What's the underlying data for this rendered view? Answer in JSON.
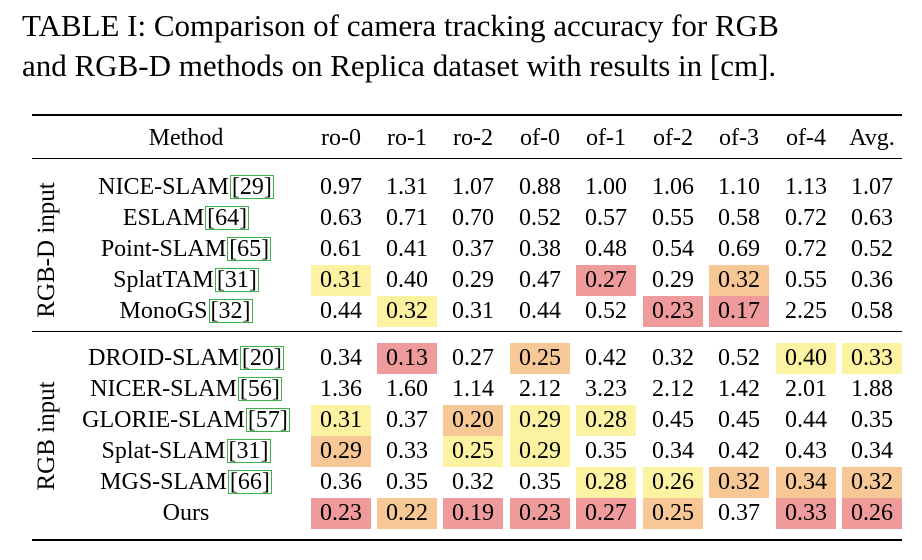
{
  "caption": {
    "line1": "TABLE I: Comparison of camera tracking accuracy for RGB",
    "line2": "and RGB-D methods on Replica dataset with results in [cm]."
  },
  "colors": {
    "red": "#ef9b9b",
    "orange": "#f7c795",
    "yellow": "#fbf3a1",
    "cite_border": "#3cb34a"
  },
  "table": {
    "method_header": "Method",
    "columns": [
      "ro-0",
      "ro-1",
      "ro-2",
      "of-0",
      "of-1",
      "of-2",
      "of-3",
      "of-4",
      "Avg."
    ],
    "groups": [
      {
        "label": "RGB-D input",
        "rows": [
          {
            "name": "NICE-SLAM",
            "cite": "[29]",
            "values": [
              "0.97",
              "1.31",
              "1.07",
              "0.88",
              "1.00",
              "1.06",
              "1.10",
              "1.13",
              "1.07"
            ],
            "hl": [
              "",
              "",
              "",
              "",
              "",
              "",
              "",
              "",
              ""
            ]
          },
          {
            "name": "ESLAM",
            "cite": "[64]",
            "values": [
              "0.63",
              "0.71",
              "0.70",
              "0.52",
              "0.57",
              "0.55",
              "0.58",
              "0.72",
              "0.63"
            ],
            "hl": [
              "",
              "",
              "",
              "",
              "",
              "",
              "",
              "",
              ""
            ]
          },
          {
            "name": "Point-SLAM",
            "cite": "[65]",
            "values": [
              "0.61",
              "0.41",
              "0.37",
              "0.38",
              "0.48",
              "0.54",
              "0.69",
              "0.72",
              "0.52"
            ],
            "hl": [
              "",
              "",
              "",
              "",
              "",
              "",
              "",
              "",
              ""
            ]
          },
          {
            "name": "SplatTAM",
            "cite": "[31]",
            "values": [
              "0.31",
              "0.40",
              "0.29",
              "0.47",
              "0.27",
              "0.29",
              "0.32",
              "0.55",
              "0.36"
            ],
            "hl": [
              "yellow",
              "",
              "",
              "",
              "red",
              "",
              "orange",
              "",
              ""
            ]
          },
          {
            "name": "MonoGS",
            "cite": "[32]",
            "values": [
              "0.44",
              "0.32",
              "0.31",
              "0.44",
              "0.52",
              "0.23",
              "0.17",
              "2.25",
              "0.58"
            ],
            "hl": [
              "",
              "yellow",
              "",
              "",
              "",
              "red",
              "red",
              "",
              ""
            ]
          }
        ]
      },
      {
        "label": "RGB input",
        "rows": [
          {
            "name": "DROID-SLAM",
            "cite": "[20]",
            "values": [
              "0.34",
              "0.13",
              "0.27",
              "0.25",
              "0.42",
              "0.32",
              "0.52",
              "0.40",
              "0.33"
            ],
            "hl": [
              "",
              "red",
              "",
              "orange",
              "",
              "",
              "",
              "yellow",
              "yellow"
            ]
          },
          {
            "name": "NICER-SLAM",
            "cite": "[56]",
            "values": [
              "1.36",
              "1.60",
              "1.14",
              "2.12",
              "3.23",
              "2.12",
              "1.42",
              "2.01",
              "1.88"
            ],
            "hl": [
              "",
              "",
              "",
              "",
              "",
              "",
              "",
              "",
              ""
            ]
          },
          {
            "name": "GLORIE-SLAM",
            "cite": "[57]",
            "values": [
              "0.31",
              "0.37",
              "0.20",
              "0.29",
              "0.28",
              "0.45",
              "0.45",
              "0.44",
              "0.35"
            ],
            "hl": [
              "yellow",
              "",
              "orange",
              "yellow",
              "yellow",
              "",
              "",
              "",
              ""
            ]
          },
          {
            "name": "Splat-SLAM",
            "cite": "[31]",
            "values": [
              "0.29",
              "0.33",
              "0.25",
              "0.29",
              "0.35",
              "0.34",
              "0.42",
              "0.43",
              "0.34"
            ],
            "hl": [
              "orange",
              "",
              "yellow",
              "yellow",
              "",
              "",
              "",
              "",
              ""
            ]
          },
          {
            "name": "MGS-SLAM",
            "cite": "[66]",
            "values": [
              "0.36",
              "0.35",
              "0.32",
              "0.35",
              "0.28",
              "0.26",
              "0.32",
              "0.34",
              "0.32"
            ],
            "hl": [
              "",
              "",
              "",
              "",
              "yellow",
              "yellow",
              "orange",
              "orange",
              "orange"
            ]
          },
          {
            "name": "Ours",
            "cite": "",
            "values": [
              "0.23",
              "0.22",
              "0.19",
              "0.23",
              "0.27",
              "0.25",
              "0.37",
              "0.33",
              "0.26"
            ],
            "hl": [
              "red",
              "orange",
              "red",
              "red",
              "red",
              "orange",
              "",
              "red",
              "red"
            ]
          }
        ]
      }
    ]
  }
}
